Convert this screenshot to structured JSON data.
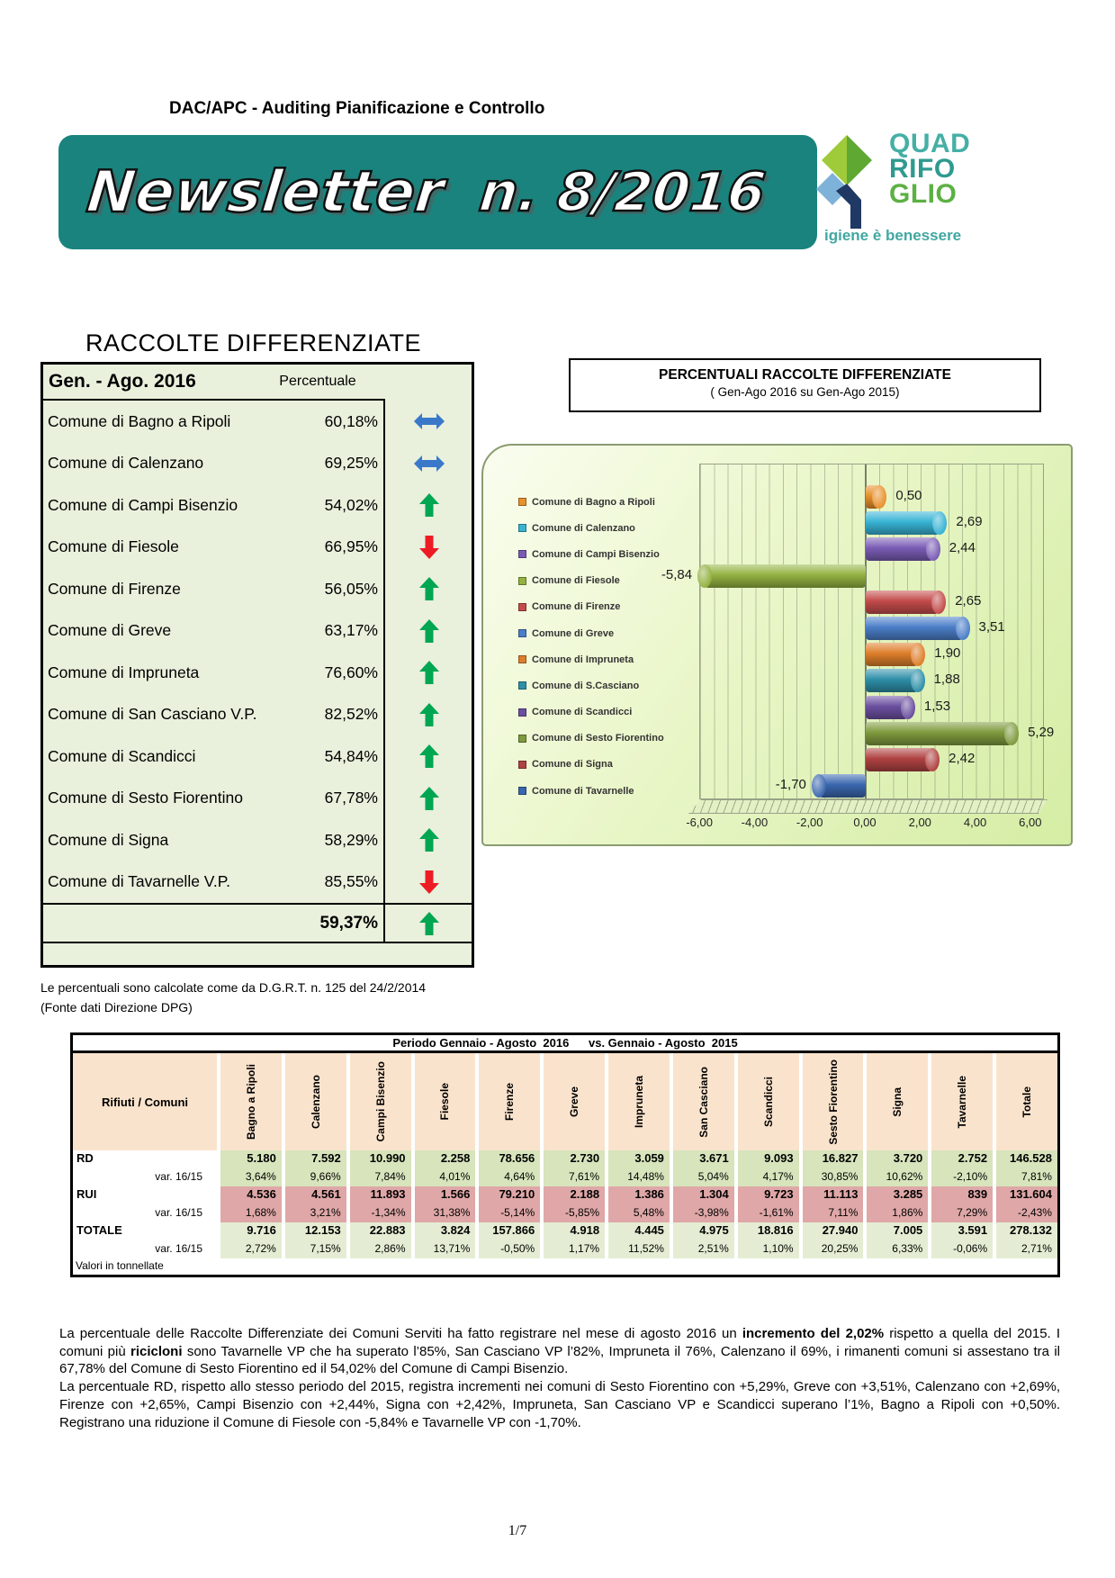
{
  "header": {
    "department": "DAC/APC - Auditing Pianificazione e Controllo",
    "banner_title": "Newsletter",
    "banner_number": "n. 8/2016",
    "logo": {
      "line1": "QUAD",
      "line2": "RIFO",
      "line3": "GLIO",
      "tagline": "igiene è benessere"
    }
  },
  "rd_table": {
    "title": "RACCOLTE DIFFERENZIATE",
    "period_label": "Gen. - Ago.  2016",
    "value_header": "Percentuale",
    "rows": [
      {
        "name": "Comune di Bagno a Ripoli",
        "value": "60,18%",
        "trend": "same"
      },
      {
        "name": "Comune di Calenzano",
        "value": "69,25%",
        "trend": "same"
      },
      {
        "name": "Comune di Campi Bisenzio",
        "value": "54,02%",
        "trend": "up"
      },
      {
        "name": "Comune di Fiesole",
        "value": "66,95%",
        "trend": "down"
      },
      {
        "name": "Comune di Firenze",
        "value": "56,05%",
        "trend": "up"
      },
      {
        "name": "Comune di Greve",
        "value": "63,17%",
        "trend": "up"
      },
      {
        "name": "Comune di Impruneta",
        "value": "76,60%",
        "trend": "up"
      },
      {
        "name": "Comune di San Casciano V.P.",
        "value": "82,52%",
        "trend": "up"
      },
      {
        "name": "Comune di Scandicci",
        "value": "54,84%",
        "trend": "up"
      },
      {
        "name": "Comune di Sesto Fiorentino",
        "value": "67,78%",
        "trend": "up"
      },
      {
        "name": "Comune di Signa",
        "value": "58,29%",
        "trend": "up"
      },
      {
        "name": "Comune di Tavarnelle V.P.",
        "value": "85,55%",
        "trend": "down"
      }
    ],
    "total": {
      "value": "59,37%",
      "trend": "up"
    },
    "footnote_line1": "Le percentuali sono calcolate come da D.G.R.T. n. 125 del 24/2/2014",
    "footnote_line2": "(Fonte dati Direzione DPG)"
  },
  "chart": {
    "title": "PERCENTUALI RACCOLTE DIFFERENZIATE",
    "subtitle": "( Gen-Ago 2016 su Gen-Ago 2015)",
    "x_ticks": [
      "-6,00",
      "-4,00",
      "-2,00",
      "0,00",
      "2,00",
      "4,00",
      "6,00"
    ],
    "series": [
      {
        "label": "Comune di Bagno a Ripoli",
        "value": 0.5,
        "value_label": "0,50",
        "color": "#E8912D"
      },
      {
        "label": "Comune di Calenzano",
        "value": 2.69,
        "value_label": "2,69",
        "color": "#38B3D4"
      },
      {
        "label": "Comune di Campi Bisenzio",
        "value": 2.44,
        "value_label": "2,44",
        "color": "#7A5CB5"
      },
      {
        "label": "Comune di Fiesole",
        "value": -5.84,
        "value_label": "-5,84",
        "color": "#93B241"
      },
      {
        "label": "Comune di Firenze",
        "value": 2.65,
        "value_label": "2,65",
        "color": "#C34B4B"
      },
      {
        "label": "Comune di Greve",
        "value": 3.51,
        "value_label": "3,51",
        "color": "#4B7EC8"
      },
      {
        "label": "Comune di Impruneta",
        "value": 1.9,
        "value_label": "1,90",
        "color": "#DE7E2B"
      },
      {
        "label": "Comune di S.Casciano",
        "value": 1.88,
        "value_label": "1,88",
        "color": "#2E8FA8"
      },
      {
        "label": "Comune di Scandicci",
        "value": 1.53,
        "value_label": "1,53",
        "color": "#6B4FA0"
      },
      {
        "label": "Comune di Sesto Fiorentino",
        "value": 5.29,
        "value_label": "5,29",
        "color": "#7E9A3D"
      },
      {
        "label": "Comune di Signa",
        "value": 2.42,
        "value_label": "2,42",
        "color": "#B04242"
      },
      {
        "label": "Comune di Tavarnelle",
        "value": -1.7,
        "value_label": "-1,70",
        "color": "#3A67AE"
      }
    ]
  },
  "chart_data": {
    "type": "bar",
    "orientation": "horizontal",
    "title": "PERCENTUALI RACCOLTE DIFFERENZIATE",
    "subtitle": "( Gen-Ago 2016 su Gen-Ago 2015)",
    "categories": [
      "Comune di Bagno a Ripoli",
      "Comune di Calenzano",
      "Comune di Campi Bisenzio",
      "Comune di Fiesole",
      "Comune di Firenze",
      "Comune di Greve",
      "Comune di Impruneta",
      "Comune di S.Casciano",
      "Comune di Scandicci",
      "Comune di Sesto Fiorentino",
      "Comune di Signa",
      "Comune di Tavarnelle"
    ],
    "values": [
      0.5,
      2.69,
      2.44,
      -5.84,
      2.65,
      3.51,
      1.9,
      1.88,
      1.53,
      5.29,
      2.42,
      -1.7
    ],
    "xlabel": "",
    "ylabel": "",
    "xlim": [
      -6.0,
      6.5
    ],
    "xticks": [
      -6,
      -4,
      -2,
      0,
      2,
      4,
      6
    ],
    "grid": true,
    "legend_position": "left"
  },
  "data_table": {
    "period_header": "Periodo Gennaio - Agosto  2016      vs. Gennaio - Agosto  2015",
    "corner_label": "Rifiuti / Comuni",
    "columns": [
      "Bagno a Ripoli",
      "Calenzano",
      "Campi Bisenzio",
      "Fiesole",
      "Firenze",
      "Greve",
      "Impruneta",
      "San Casciano",
      "Scandicci",
      "Sesto Fiorentino",
      "Signa",
      "Tavarnelle",
      "Totale"
    ],
    "rows": [
      {
        "label": "RD",
        "kind": "main",
        "bg": "bg-green",
        "values": [
          "5.180",
          "7.592",
          "10.990",
          "2.258",
          "78.656",
          "2.730",
          "3.059",
          "3.671",
          "9.093",
          "16.827",
          "3.720",
          "2.752",
          "146.528"
        ]
      },
      {
        "label": "var. 16/15",
        "kind": "var",
        "bg": "bg-green",
        "values": [
          "3,64%",
          "9,66%",
          "7,84%",
          "4,01%",
          "4,64%",
          "7,61%",
          "14,48%",
          "5,04%",
          "4,17%",
          "30,85%",
          "10,62%",
          "-2,10%",
          "7,81%"
        ]
      },
      {
        "label": "RUI",
        "kind": "main",
        "bg": "bg-pink",
        "values": [
          "4.536",
          "4.561",
          "11.893",
          "1.566",
          "79.210",
          "2.188",
          "1.386",
          "1.304",
          "9.723",
          "11.113",
          "3.285",
          "839",
          "131.604"
        ]
      },
      {
        "label": "var. 16/15",
        "kind": "var",
        "bg": "bg-pink",
        "values": [
          "1,68%",
          "3,21%",
          "-1,34%",
          "31,38%",
          "-5,14%",
          "-5,85%",
          "5,48%",
          "-3,98%",
          "-1,61%",
          "7,11%",
          "1,86%",
          "7,29%",
          "-2,43%"
        ]
      },
      {
        "label": "TOTALE",
        "kind": "main",
        "bg": "bg-green2",
        "values": [
          "9.716",
          "12.153",
          "22.883",
          "3.824",
          "157.866",
          "4.918",
          "4.445",
          "4.975",
          "18.816",
          "27.940",
          "7.005",
          "3.591",
          "278.132"
        ]
      },
      {
        "label": "var. 16/15",
        "kind": "var",
        "bg": "bg-green2",
        "values": [
          "2,72%",
          "7,15%",
          "2,86%",
          "13,71%",
          "-0,50%",
          "1,17%",
          "11,52%",
          "2,51%",
          "1,10%",
          "20,25%",
          "6,33%",
          "-0,06%",
          "2,71%"
        ]
      }
    ],
    "footer": "Valori in tonnellate"
  },
  "paragraphs": [
    {
      "segments": [
        {
          "text": "La percentuale delle Raccolte Differenziate dei Comuni Serviti ha fatto registrare nel mese di agosto 2016 un ",
          "bold": false
        },
        {
          "text": "incremento del 2,02%",
          "bold": true
        },
        {
          "text": " rispetto a quella del 2015. I comuni più ",
          "bold": false
        },
        {
          "text": "ricicloni",
          "bold": true
        },
        {
          "text": " sono Tavarnelle VP che ha superato l’85%, San Casciano VP  l’82%, Impruneta il 76%, Calenzano il 69%, i rimanenti comuni si assestano tra il 67,78% del Comune di Sesto Fiorentino ed il 54,02% del Comune di Campi Bisenzio.",
          "bold": false
        }
      ]
    },
    {
      "segments": [
        {
          "text": "La percentuale RD, rispetto allo stesso periodo del 2015, registra incrementi nei comuni di Sesto Fiorentino con +5,29%, Greve con +3,51%, Calenzano con +2,69%, Firenze con +2,65%, Campi Bisenzio con +2,44%, Signa con +2,42%, Impruneta, San Casciano VP e Scandicci superano l’1%, Bagno a Ripoli con +0,50%. Registrano una riduzione il Comune di Fiesole con -5,84% e Tavarnelle VP con -1,70%.",
          "bold": false
        }
      ]
    }
  ],
  "page_number": "1/7",
  "colors": {
    "banner": "#1A837E",
    "trend_up": "#00A651",
    "trend_down": "#ED1C24",
    "trend_same": "#3A79C9",
    "table_green": "#D7E4BC",
    "table_pink": "#DFA7A7",
    "table_green_light": "#E4EDD3",
    "header_peach": "#FAE3CC",
    "rd_table_bg": "#E9F0DC"
  }
}
